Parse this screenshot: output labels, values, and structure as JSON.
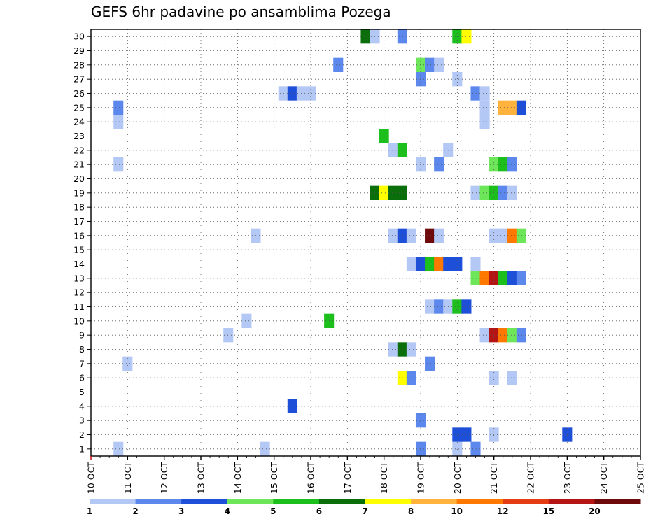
{
  "chart_data": {
    "type": "heatmap",
    "title": "GEFS 6hr padavine po ansamblima Pozega",
    "xlabel": "",
    "ylabel": "",
    "x_tick_labels": [
      "10 OCT",
      "11 OCT",
      "12 OCT",
      "13 OCT",
      "14 OCT",
      "15 OCT",
      "16 OCT",
      "17 OCT",
      "18 OCT",
      "19 OCT",
      "20 OCT",
      "21 OCT",
      "22 OCT",
      "23 OCT",
      "24 OCT",
      "25 OCT"
    ],
    "y_tick_labels": [
      "1",
      "2",
      "3",
      "4",
      "5",
      "6",
      "7",
      "8",
      "9",
      "10",
      "11",
      "12",
      "13",
      "14",
      "15",
      "16",
      "17",
      "18",
      "19",
      "20",
      "21",
      "22",
      "23",
      "24",
      "25",
      "26",
      "27",
      "28",
      "29",
      "30"
    ],
    "xlim": [
      0,
      60
    ],
    "ylim": [
      1,
      30
    ],
    "grid": true,
    "x_unit": "6-hour step from 10 OCT 00Z",
    "y_unit": "ensemble member",
    "legend_position": "bottom",
    "color_bins": [
      {
        "label": "1",
        "color": "#b4c8f5"
      },
      {
        "label": "2",
        "color": "#5c88ee"
      },
      {
        "label": "3",
        "color": "#1e4fd8"
      },
      {
        "label": "4",
        "color": "#6ee65a"
      },
      {
        "label": "5",
        "color": "#1cbf1c"
      },
      {
        "label": "6",
        "color": "#0a6e0a"
      },
      {
        "label": "7",
        "color": "#ffff00"
      },
      {
        "label": "8",
        "color": "#ffb23c"
      },
      {
        "label": "10",
        "color": "#ff7800"
      },
      {
        "label": "12",
        "color": "#e63c14"
      },
      {
        "label": "15",
        "color": "#b41414"
      },
      {
        "label": "20",
        "color": "#6e0a0a"
      }
    ],
    "values": [
      {
        "x": 3,
        "y": 1,
        "bin": 0
      },
      {
        "x": 19,
        "y": 1,
        "bin": 0
      },
      {
        "x": 36,
        "y": 1,
        "bin": 1
      },
      {
        "x": 40,
        "y": 1,
        "bin": 0
      },
      {
        "x": 42,
        "y": 1,
        "bin": 1
      },
      {
        "x": 40,
        "y": 2,
        "bin": 2
      },
      {
        "x": 41,
        "y": 2,
        "bin": 2
      },
      {
        "x": 44,
        "y": 2,
        "bin": 0
      },
      {
        "x": 52,
        "y": 2,
        "bin": 2
      },
      {
        "x": 36,
        "y": 3,
        "bin": 1
      },
      {
        "x": 22,
        "y": 4,
        "bin": 2
      },
      {
        "x": 34,
        "y": 6,
        "bin": 6
      },
      {
        "x": 35,
        "y": 6,
        "bin": 1
      },
      {
        "x": 44,
        "y": 6,
        "bin": 0
      },
      {
        "x": 46,
        "y": 6,
        "bin": 0
      },
      {
        "x": 4,
        "y": 7,
        "bin": 0
      },
      {
        "x": 37,
        "y": 7,
        "bin": 1
      },
      {
        "x": 33,
        "y": 8,
        "bin": 0
      },
      {
        "x": 34,
        "y": 8,
        "bin": 5
      },
      {
        "x": 35,
        "y": 8,
        "bin": 0
      },
      {
        "x": 15,
        "y": 9,
        "bin": 0
      },
      {
        "x": 43,
        "y": 9,
        "bin": 0
      },
      {
        "x": 44,
        "y": 9,
        "bin": 10
      },
      {
        "x": 45,
        "y": 9,
        "bin": 8
      },
      {
        "x": 46,
        "y": 9,
        "bin": 3
      },
      {
        "x": 47,
        "y": 9,
        "bin": 1
      },
      {
        "x": 17,
        "y": 10,
        "bin": 0
      },
      {
        "x": 26,
        "y": 10,
        "bin": 4
      },
      {
        "x": 37,
        "y": 11,
        "bin": 0
      },
      {
        "x": 38,
        "y": 11,
        "bin": 1
      },
      {
        "x": 39,
        "y": 11,
        "bin": 0
      },
      {
        "x": 40,
        "y": 11,
        "bin": 4
      },
      {
        "x": 41,
        "y": 11,
        "bin": 2
      },
      {
        "x": 42,
        "y": 13,
        "bin": 3
      },
      {
        "x": 43,
        "y": 13,
        "bin": 8
      },
      {
        "x": 44,
        "y": 13,
        "bin": 10
      },
      {
        "x": 45,
        "y": 13,
        "bin": 4
      },
      {
        "x": 46,
        "y": 13,
        "bin": 2
      },
      {
        "x": 47,
        "y": 13,
        "bin": 1
      },
      {
        "x": 35,
        "y": 14,
        "bin": 0
      },
      {
        "x": 36,
        "y": 14,
        "bin": 2
      },
      {
        "x": 37,
        "y": 14,
        "bin": 4
      },
      {
        "x": 38,
        "y": 14,
        "bin": 8
      },
      {
        "x": 39,
        "y": 14,
        "bin": 2
      },
      {
        "x": 40,
        "y": 14,
        "bin": 2
      },
      {
        "x": 42,
        "y": 14,
        "bin": 0
      },
      {
        "x": 18,
        "y": 16,
        "bin": 0
      },
      {
        "x": 33,
        "y": 16,
        "bin": 0
      },
      {
        "x": 34,
        "y": 16,
        "bin": 2
      },
      {
        "x": 35,
        "y": 16,
        "bin": 0
      },
      {
        "x": 37,
        "y": 16,
        "bin": 11
      },
      {
        "x": 38,
        "y": 16,
        "bin": 0
      },
      {
        "x": 44,
        "y": 16,
        "bin": 0
      },
      {
        "x": 45,
        "y": 16,
        "bin": 0
      },
      {
        "x": 46,
        "y": 16,
        "bin": 8
      },
      {
        "x": 47,
        "y": 16,
        "bin": 3
      },
      {
        "x": 31,
        "y": 19,
        "bin": 5
      },
      {
        "x": 32,
        "y": 19,
        "bin": 6
      },
      {
        "x": 33,
        "y": 19,
        "bin": 5
      },
      {
        "x": 34,
        "y": 19,
        "bin": 5
      },
      {
        "x": 42,
        "y": 19,
        "bin": 0
      },
      {
        "x": 43,
        "y": 19,
        "bin": 3
      },
      {
        "x": 44,
        "y": 19,
        "bin": 4
      },
      {
        "x": 45,
        "y": 19,
        "bin": 1
      },
      {
        "x": 46,
        "y": 19,
        "bin": 0
      },
      {
        "x": 3,
        "y": 21,
        "bin": 0
      },
      {
        "x": 36,
        "y": 21,
        "bin": 0
      },
      {
        "x": 38,
        "y": 21,
        "bin": 1
      },
      {
        "x": 44,
        "y": 21,
        "bin": 3
      },
      {
        "x": 45,
        "y": 21,
        "bin": 4
      },
      {
        "x": 46,
        "y": 21,
        "bin": 1
      },
      {
        "x": 33,
        "y": 22,
        "bin": 0
      },
      {
        "x": 34,
        "y": 22,
        "bin": 4
      },
      {
        "x": 39,
        "y": 22,
        "bin": 0
      },
      {
        "x": 32,
        "y": 23,
        "bin": 4
      },
      {
        "x": 3,
        "y": 24,
        "bin": 0
      },
      {
        "x": 43,
        "y": 24,
        "bin": 0
      },
      {
        "x": 3,
        "y": 25,
        "bin": 1
      },
      {
        "x": 43,
        "y": 25,
        "bin": 0
      },
      {
        "x": 45,
        "y": 25,
        "bin": 7
      },
      {
        "x": 46,
        "y": 25,
        "bin": 7
      },
      {
        "x": 47,
        "y": 25,
        "bin": 2
      },
      {
        "x": 21,
        "y": 26,
        "bin": 0
      },
      {
        "x": 22,
        "y": 26,
        "bin": 2
      },
      {
        "x": 23,
        "y": 26,
        "bin": 0
      },
      {
        "x": 24,
        "y": 26,
        "bin": 0
      },
      {
        "x": 42,
        "y": 26,
        "bin": 1
      },
      {
        "x": 43,
        "y": 26,
        "bin": 0
      },
      {
        "x": 36,
        "y": 27,
        "bin": 1
      },
      {
        "x": 40,
        "y": 27,
        "bin": 0
      },
      {
        "x": 27,
        "y": 28,
        "bin": 1
      },
      {
        "x": 36,
        "y": 28,
        "bin": 3
      },
      {
        "x": 37,
        "y": 28,
        "bin": 1
      },
      {
        "x": 38,
        "y": 28,
        "bin": 0
      },
      {
        "x": 30,
        "y": 30,
        "bin": 5
      },
      {
        "x": 31,
        "y": 30,
        "bin": 0
      },
      {
        "x": 34,
        "y": 30,
        "bin": 1
      },
      {
        "x": 40,
        "y": 30,
        "bin": 4
      },
      {
        "x": 41,
        "y": 30,
        "bin": 6
      }
    ]
  }
}
